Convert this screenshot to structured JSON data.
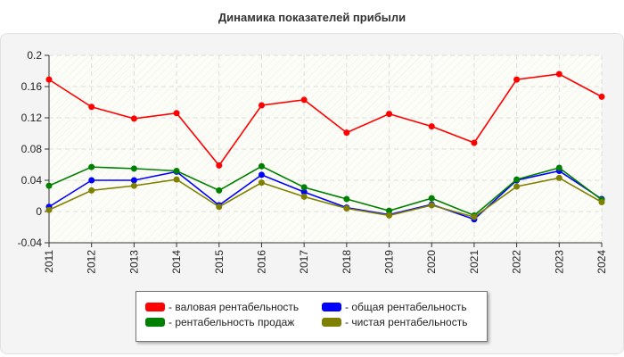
{
  "chart_data": {
    "type": "line",
    "title": "Динамика показателей прибыли",
    "x": [
      "2011",
      "2012",
      "2013",
      "2014",
      "2015",
      "2016",
      "2017",
      "2018",
      "2019",
      "2020",
      "2021",
      "2022",
      "2023",
      "2024"
    ],
    "ylim": [
      -0.04,
      0.2
    ],
    "yticks": [
      "-0.04",
      "0",
      "0.04",
      "0.08",
      "0.12",
      "0.16",
      "0.2"
    ],
    "grid": true,
    "legend_position": "bottom",
    "series": [
      {
        "name": "- валовая рентабельность",
        "color": "#ff0000",
        "values": [
          0.169,
          0.134,
          0.119,
          0.126,
          0.059,
          0.136,
          0.143,
          0.101,
          0.125,
          0.109,
          0.088,
          0.169,
          0.176,
          0.147
        ]
      },
      {
        "name": "- общая рентабельность",
        "color": "#0000ff",
        "values": [
          0.006,
          0.04,
          0.04,
          0.051,
          0.008,
          0.047,
          0.025,
          0.005,
          -0.004,
          0.009,
          -0.01,
          0.04,
          0.052,
          0.016
        ]
      },
      {
        "name": "- рентабельность продаж",
        "color": "#008000",
        "values": [
          0.033,
          0.057,
          0.055,
          0.052,
          0.027,
          0.058,
          0.031,
          0.016,
          0.001,
          0.017,
          -0.005,
          0.041,
          0.056,
          0.015
        ]
      },
      {
        "name": "- чистая рентабельность",
        "color": "#808000",
        "values": [
          0.002,
          0.027,
          0.033,
          0.041,
          0.006,
          0.037,
          0.019,
          0.004,
          -0.005,
          0.008,
          -0.007,
          0.032,
          0.043,
          0.012
        ]
      }
    ]
  }
}
